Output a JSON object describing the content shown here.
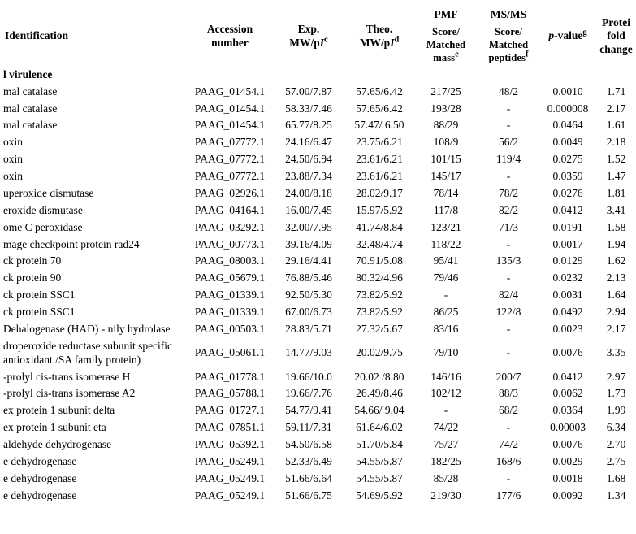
{
  "headers": {
    "identification": "Identification",
    "accession": "Accession number",
    "exp_prefix": "Exp. MW/p",
    "exp_sup": "c",
    "theo_prefix": "Theo. MW/p",
    "theo_sup": "d",
    "pmf": "PMF",
    "msms": "MS/MS",
    "pmf_sub_line": "Score/ Matched mass",
    "pmf_sub_sup": "e",
    "msms_sub_line": "Score/ Matched peptides",
    "msms_sub_sup": "f",
    "pvalue_prefix": "p",
    "pvalue_rest": "-value",
    "pvalue_sup": "g",
    "fold": "Protei fold change"
  },
  "group_label": "l virulence",
  "rows": [
    {
      "ident": "mal catalase",
      "acc": "PAAG_01454.1",
      "exp": "57.00/7.87",
      "theo": "57.65/6.42",
      "pmf": "217/25",
      "msms": "48/2",
      "pval": "0.0010",
      "fold": "1.71"
    },
    {
      "ident": "mal catalase",
      "acc": "PAAG_01454.1",
      "exp": "58.33/7.46",
      "theo": "57.65/6.42",
      "pmf": "193/28",
      "msms": "-",
      "pval": "0.000008",
      "fold": "2.17"
    },
    {
      "ident": "mal catalase",
      "acc": "PAAG_01454.1",
      "exp": "65.77/8.25",
      "theo": "57.47/ 6.50",
      "pmf": "88/29",
      "msms": "-",
      "pval": "0.0464",
      "fold": "1.61"
    },
    {
      "ident": "oxin",
      "acc": "PAAG_07772.1",
      "exp": "24.16/6.47",
      "theo": "23.75/6.21",
      "pmf": "108/9",
      "msms": "56/2",
      "pval": "0.0049",
      "fold": "2.18"
    },
    {
      "ident": "oxin",
      "acc": "PAAG_07772.1",
      "exp": "24.50/6.94",
      "theo": "23.61/6.21",
      "pmf": "101/15",
      "msms": "119/4",
      "pval": "0.0275",
      "fold": "1.52"
    },
    {
      "ident": "oxin",
      "acc": "PAAG_07772.1",
      "exp": "23.88/7.34",
      "theo": "23.61/6.21",
      "pmf": "145/17",
      "msms": "-",
      "pval": "0.0359",
      "fold": "1.47"
    },
    {
      "ident": "uperoxide dismutase",
      "acc": "PAAG_02926.1",
      "exp": "24.00/8.18",
      "theo": "28.02/9.17",
      "pmf": "78/14",
      "msms": "78/2",
      "pval": "0.0276",
      "fold": "1.81"
    },
    {
      "ident": "eroxide dismutase",
      "acc": "PAAG_04164.1",
      "exp": "16.00/7.45",
      "theo": "15.97/5.92",
      "pmf": "117/8",
      "msms": "82/2",
      "pval": "0.0412",
      "fold": "3.41"
    },
    {
      "ident": "ome C peroxidase",
      "acc": "PAAG_03292.1",
      "exp": "32.00/7.95",
      "theo": "41.74/8.84",
      "pmf": "123/21",
      "msms": "71/3",
      "pval": "0.0191",
      "fold": "1.58"
    },
    {
      "ident": "mage checkpoint protein rad24",
      "acc": "PAAG_00773.1",
      "exp": "39.16/4.09",
      "theo": "32.48/4.74",
      "pmf": "118/22",
      "msms": "-",
      "pval": "0.0017",
      "fold": "1.94"
    },
    {
      "ident": "ck protein 70",
      "acc": "PAAG_08003.1",
      "exp": "29.16/4.41",
      "theo": "70.91/5.08",
      "pmf": "95/41",
      "msms": "135/3",
      "pval": "0.0129",
      "fold": "1.62"
    },
    {
      "ident": "ck protein 90",
      "acc": "PAAG_05679.1",
      "exp": "76.88/5.46",
      "theo": "80.32/4.96",
      "pmf": "79/46",
      "msms": "-",
      "pval": "0.0232",
      "fold": "2.13"
    },
    {
      "ident": "ck protein SSC1",
      "acc": "PAAG_01339.1",
      "exp": "92.50/5.30",
      "theo": "73.82/5.92",
      "pmf": "-",
      "msms": "82/4",
      "pval": "0.0031",
      "fold": "1.64"
    },
    {
      "ident": "ck protein SSC1",
      "acc": "PAAG_01339.1",
      "exp": "67.00/6.73",
      "theo": "73.82/5.92",
      "pmf": "86/25",
      "msms": "122/8",
      "pval": "0.0492",
      "fold": "2.94"
    },
    {
      "ident": " Dehalogenase (HAD) - nily hydrolase",
      "acc": "PAAG_00503.1",
      "exp": "28.83/5.71",
      "theo": "27.32/5.67",
      "pmf": "83/16",
      "msms": "-",
      "pval": "0.0023",
      "fold": "2.17"
    },
    {
      "ident": "droperoxide reductase subunit specific antioxidant /SA family protein)",
      "acc": "PAAG_05061.1",
      "exp": "14.77/9.03",
      "theo": "20.02/9.75",
      "pmf": "79/10",
      "msms": "-",
      "pval": "0.0076",
      "fold": "3.35"
    },
    {
      "ident": "-prolyl cis-trans isomerase H",
      "acc": "PAAG_01778.1",
      "exp": "19.66/10.0",
      "theo": "20.02 /8.80",
      "pmf": "146/16",
      "msms": "200/7",
      "pval": "0.0412",
      "fold": "2.97"
    },
    {
      "ident": "-prolyl cis-trans isomerase A2",
      "acc": "PAAG_05788.1",
      "exp": "19.66/7.76",
      "theo": "26.49/8.46",
      "pmf": "102/12",
      "msms": "88/3",
      "pval": "0.0062",
      "fold": "1.73"
    },
    {
      "ident": "ex protein 1 subunit delta",
      "acc": "PAAG_01727.1",
      "exp": "54.77/9.41",
      "theo": "54.66/ 9.04",
      "pmf": "-",
      "msms": "68/2",
      "pval": "0.0364",
      "fold": "1.99"
    },
    {
      "ident": "ex protein 1 subunit eta",
      "acc": "PAAG_07851.1",
      "exp": "59.11/7.31",
      "theo": "61.64/6.02",
      "pmf": "74/22",
      "msms": "-",
      "pval": "0.00003",
      "fold": "6.34"
    },
    {
      "ident": "aldehyde dehydrogenase",
      "acc": "PAAG_05392.1",
      "exp": "54.50/6.58",
      "theo": "51.70/5.84",
      "pmf": "75/27",
      "msms": "74/2",
      "pval": "0.0076",
      "fold": "2.70"
    },
    {
      "ident": "e dehydrogenase",
      "acc": "PAAG_05249.1",
      "exp": "52.33/6.49",
      "theo": "54.55/5.87",
      "pmf": "182/25",
      "msms": "168/6",
      "pval": "0.0029",
      "fold": "2.75"
    },
    {
      "ident": "e dehydrogenase",
      "acc": "PAAG_05249.1",
      "exp": "51.66/6.64",
      "theo": "54.55/5.87",
      "pmf": "85/28",
      "msms": "-",
      "pval": "0.0018",
      "fold": "1.68"
    },
    {
      "ident": "e dehydrogenase",
      "acc": "PAAG_05249.1",
      "exp": "51.66/6.75",
      "theo": "54.69/5.92",
      "pmf": "219/30",
      "msms": "177/6",
      "pval": "0.0092",
      "fold": "1.34"
    }
  ]
}
